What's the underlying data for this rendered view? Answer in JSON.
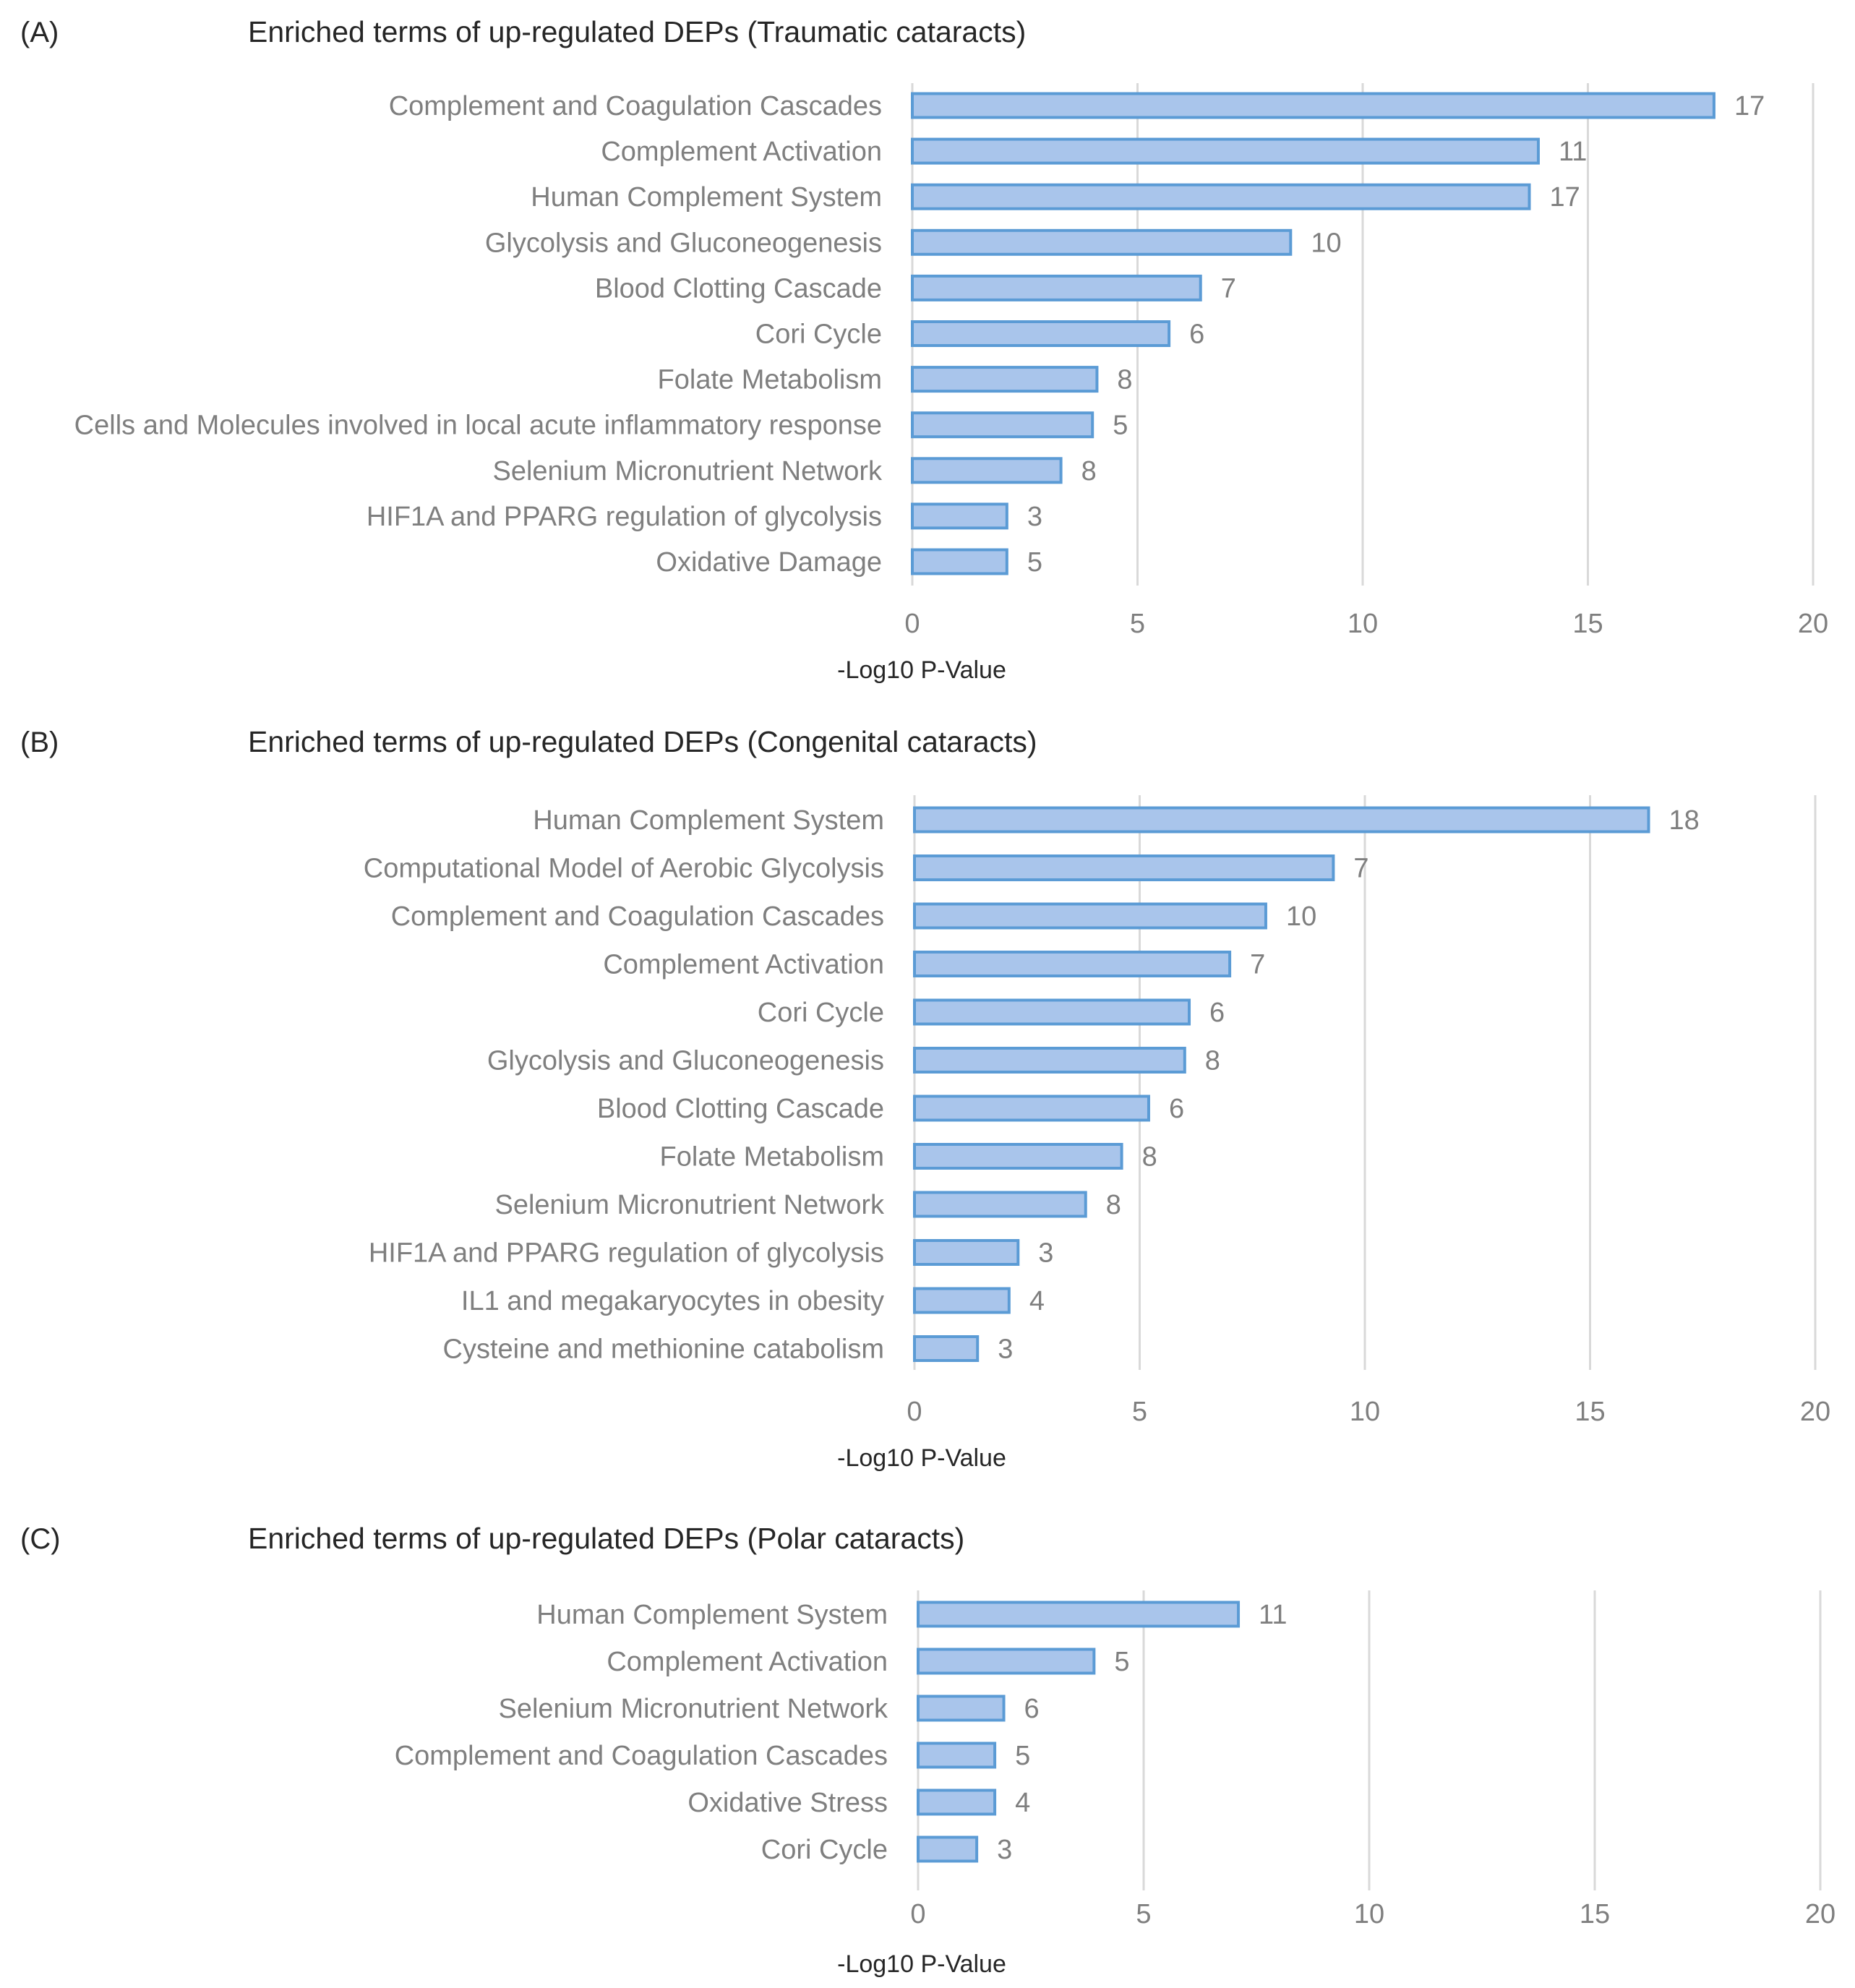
{
  "chart_data": [
    {
      "type": "bar",
      "orientation": "horizontal",
      "panel_letter": "(A)",
      "title": "Enriched terms of up-regulated DEPs (Traumatic cataracts)",
      "xlabel": "-Log10 P-Value",
      "ylabel": "",
      "xlim": [
        0,
        20
      ],
      "xticks": [
        "0",
        "5",
        "10",
        "15",
        "20"
      ],
      "grid": true,
      "categories": [
        "Complement and Coagulation Cascades",
        "Complement Activation",
        "Human Complement System",
        "Glycolysis and Gluconeogenesis",
        "Blood Clotting Cascade",
        "Cori Cycle",
        "Folate Metabolism",
        "Cells and Molecules involved in local acute inflammatory response",
        "Selenium Micronutrient Network",
        "HIF1A and PPARG regulation of glycolysis",
        "Oxidative Damage"
      ],
      "values": [
        17.8,
        13.9,
        13.7,
        8.4,
        6.4,
        5.7,
        4.1,
        4.0,
        3.3,
        2.1,
        2.1
      ],
      "data_labels": [
        "17",
        "11",
        "17",
        "10",
        "7",
        "6",
        "8",
        "5",
        "8",
        "3",
        "5"
      ],
      "bar_fill": "#a9c5eb",
      "bar_edge": "#5b9bd5"
    },
    {
      "type": "bar",
      "orientation": "horizontal",
      "panel_letter": "(B)",
      "title": "Enriched terms of up-regulated DEPs (Congenital cataracts)",
      "xlabel": "-Log10 P-Value",
      "ylabel": "",
      "xlim": [
        0,
        20
      ],
      "xticks": [
        "0",
        "5",
        "10",
        "15",
        "20"
      ],
      "grid": true,
      "categories": [
        "Human Complement System",
        "Computational Model of Aerobic Glycolysis",
        "Complement and Coagulation Cascades",
        "Complement Activation",
        "Cori Cycle",
        "Glycolysis and Gluconeogenesis",
        "Blood Clotting Cascade",
        "Folate Metabolism",
        "Selenium Micronutrient Network",
        "HIF1A and PPARG regulation of glycolysis",
        "IL1 and megakaryocytes in obesity",
        "Cysteine and methionine catabolism"
      ],
      "values": [
        16.3,
        9.3,
        7.8,
        7.0,
        6.1,
        6.0,
        5.2,
        4.6,
        3.8,
        2.3,
        2.1,
        1.4
      ],
      "data_labels": [
        "18",
        "7",
        "10",
        "7",
        "6",
        "8",
        "6",
        "8",
        "8",
        "3",
        "4",
        "3"
      ],
      "bar_fill": "#a9c5eb",
      "bar_edge": "#5b9bd5"
    },
    {
      "type": "bar",
      "orientation": "horizontal",
      "panel_letter": "(C)",
      "title": "Enriched terms of up-regulated DEPs (Polar cataracts)",
      "xlabel": "-Log10 P-Value",
      "ylabel": "",
      "xlim": [
        0,
        20
      ],
      "xticks": [
        "0",
        "5",
        "10",
        "15",
        "20"
      ],
      "grid": true,
      "categories": [
        "Human Complement System",
        "Complement Activation",
        "Selenium Micronutrient Network",
        "Complement and Coagulation Cascades",
        "Oxidative Stress",
        "Cori Cycle"
      ],
      "values": [
        7.1,
        3.9,
        1.9,
        1.7,
        1.7,
        1.3
      ],
      "data_labels": [
        "11",
        "5",
        "6",
        "5",
        "4",
        "3"
      ],
      "bar_fill": "#a9c5eb",
      "bar_edge": "#5b9bd5"
    }
  ]
}
